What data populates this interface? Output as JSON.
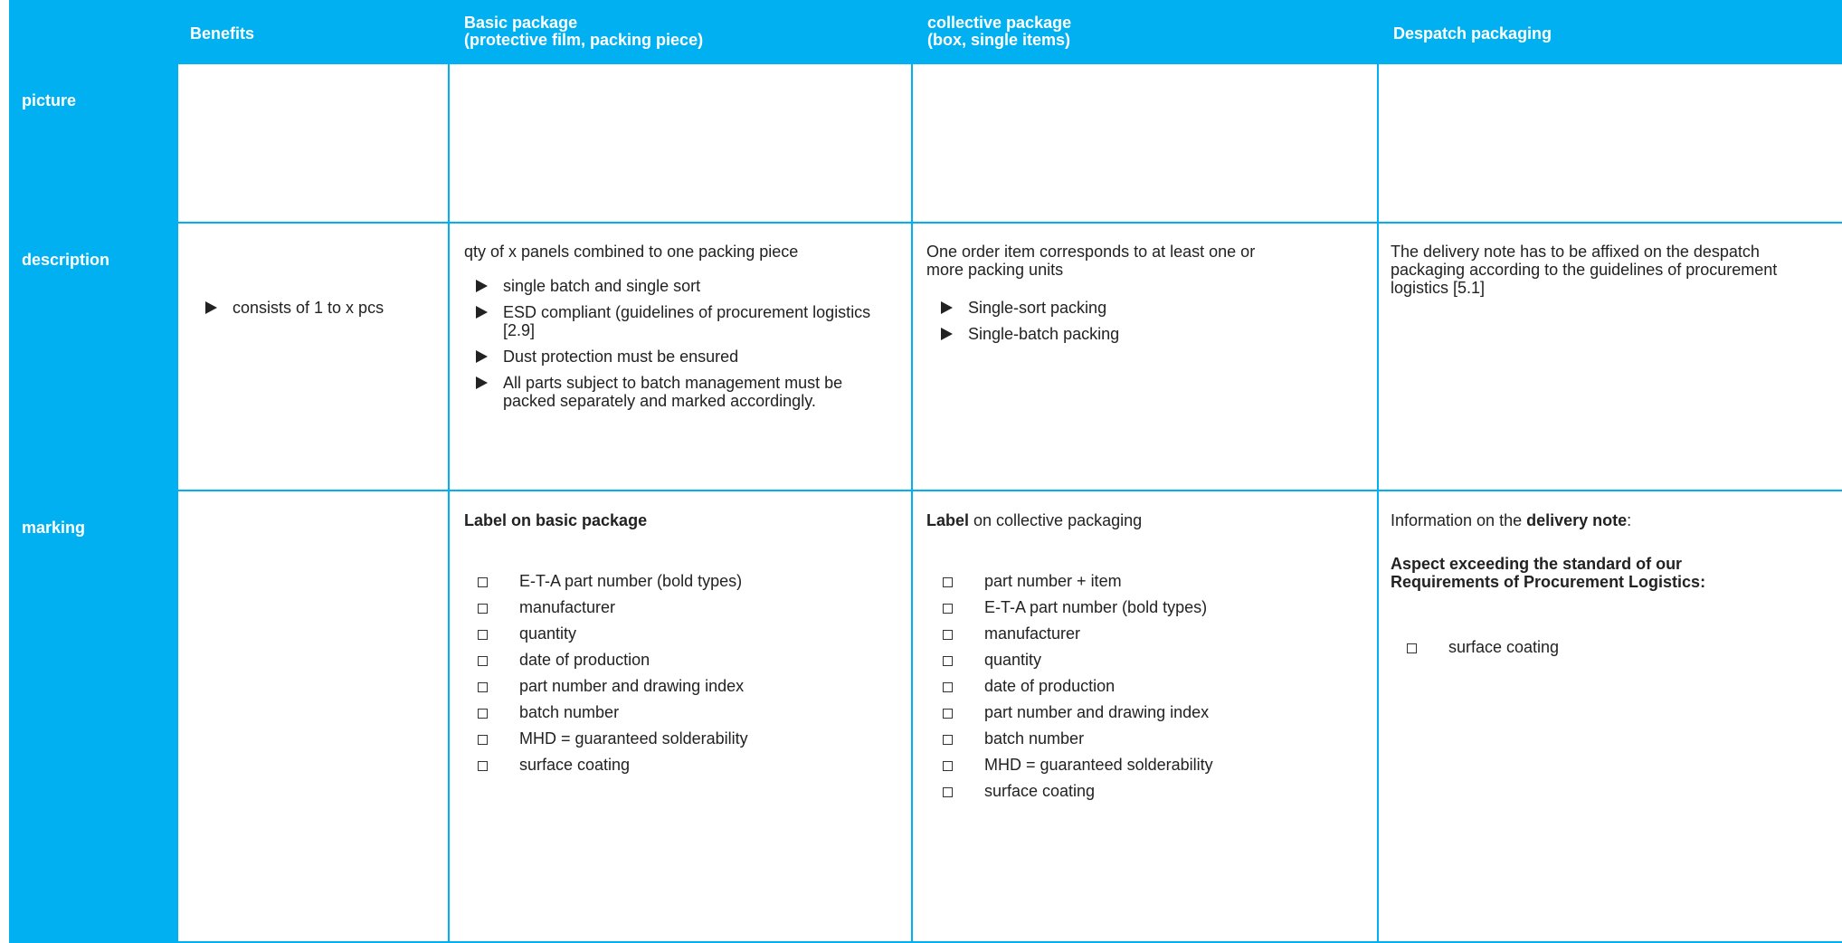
{
  "header": {
    "columns": [
      [
        "Benefits"
      ],
      [
        "Basic package",
        "(protective film, packing piece)"
      ],
      [
        "collective package",
        "(box, single items)"
      ],
      [
        "Despatch packaging"
      ]
    ]
  },
  "row_labels": [
    "picture",
    "description",
    "marking"
  ],
  "description": {
    "benefits": {
      "bullets": [
        "consists of 1 to x pcs"
      ]
    },
    "basic": {
      "intro": "qty of x panels combined to one packing piece",
      "bullets": [
        "single batch and single sort",
        "ESD compliant (guidelines of procurement logistics [2.9]",
        "Dust protection must be ensured",
        "All parts subject to batch management must be packed separately and marked accordingly."
      ]
    },
    "collective": {
      "intro": "One order item corresponds to at least one or more packing units",
      "bullets": [
        "Single-sort packing",
        "Single-batch packing"
      ]
    },
    "despatch": {
      "intro": "The delivery note has to be affixed on the despatch packaging according to the guidelines of procurement logistics [5.1]"
    }
  },
  "marking": {
    "basic": {
      "title": "Label on basic package",
      "items": [
        "E-T-A part number (bold types)",
        "manufacturer",
        "quantity",
        "date of production",
        "part number and drawing index",
        "batch number",
        "MHD = guaranteed solderability",
        "surface coating"
      ]
    },
    "collective": {
      "title_bold": "Label",
      "title_rest": "on collective packaging",
      "items": [
        "part number + item",
        "E-T-A part number (bold types)",
        "manufacturer",
        "quantity",
        "date of production",
        "part number and drawing index",
        "batch number",
        "MHD = guaranteed solderability",
        "surface coating"
      ]
    },
    "despatch": {
      "intro": "Information on the",
      "intro_bold": "delivery note",
      "intro_end": ":",
      "aspect": "Aspect exceeding the standard of our Requirements of Procurement Logistics:",
      "items": [
        "surface coating"
      ]
    }
  }
}
